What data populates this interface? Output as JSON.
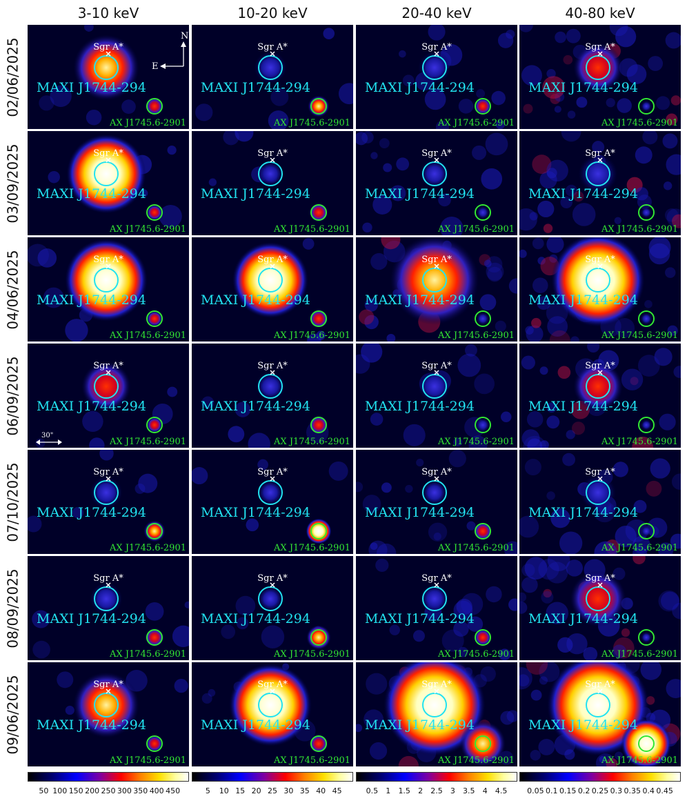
{
  "columns": [
    {
      "energy": "3-10 keV",
      "colorbar_ticks": [
        "50",
        "100",
        "150",
        "200",
        "250",
        "300",
        "350",
        "400",
        "450"
      ],
      "colorbar_range": [
        0,
        500
      ]
    },
    {
      "energy": "10-20 keV",
      "colorbar_ticks": [
        "5",
        "10",
        "15",
        "20",
        "25",
        "30",
        "35",
        "40",
        "45"
      ],
      "colorbar_range": [
        0,
        50
      ]
    },
    {
      "energy": "20-40 keV",
      "colorbar_ticks": [
        "0.5",
        "1",
        "1.5",
        "2",
        "2.5",
        "3",
        "3.5",
        "4",
        "4.5"
      ],
      "colorbar_range": [
        0,
        5
      ]
    },
    {
      "energy": "40-80 keV",
      "colorbar_ticks": [
        "0.05",
        "0.1",
        "0.15",
        "0.2",
        "0.25",
        "0.3",
        "0.35",
        "0.4",
        "0.45"
      ],
      "colorbar_range": [
        0,
        0.5
      ]
    }
  ],
  "rows": [
    {
      "date": "02/06/2025",
      "maxi_brightness": [
        0.75,
        0.25,
        0.25,
        0.5
      ],
      "ax_brightness": [
        0.5,
        0.7,
        0.45,
        0.15
      ],
      "bg_noise": [
        0.05,
        0.05,
        0.15,
        0.3
      ]
    },
    {
      "date": "03/09/2025",
      "maxi_brightness": [
        0.95,
        0.15,
        0.2,
        0.35
      ],
      "ax_brightness": [
        0.4,
        0.55,
        0.25,
        0.15
      ],
      "bg_noise": [
        0.05,
        0.05,
        0.15,
        0.3
      ]
    },
    {
      "date": "04/06/2025",
      "maxi_brightness": [
        1.0,
        0.9,
        0.85,
        0.9
      ],
      "ax_brightness": [
        0.4,
        0.55,
        0.25,
        0.2
      ],
      "bg_noise": [
        0.05,
        0.05,
        0.25,
        0.35
      ]
    },
    {
      "date": "06/09/2025",
      "maxi_brightness": [
        0.5,
        0.2,
        0.25,
        0.5
      ],
      "ax_brightness": [
        0.4,
        0.55,
        0.3,
        0.15
      ],
      "bg_noise": [
        0.05,
        0.05,
        0.15,
        0.3
      ]
    },
    {
      "date": "07/10/2025",
      "maxi_brightness": [
        0.25,
        0.15,
        0.15,
        0.3
      ],
      "ax_brightness": [
        0.7,
        0.9,
        0.5,
        0.15
      ],
      "bg_noise": [
        0.05,
        0.05,
        0.15,
        0.3
      ]
    },
    {
      "date": "08/09/2025",
      "maxi_brightness": [
        0.25,
        0.15,
        0.2,
        0.6
      ],
      "ax_brightness": [
        0.55,
        0.85,
        0.45,
        0.15
      ],
      "bg_noise": [
        0.05,
        0.05,
        0.15,
        0.3
      ]
    },
    {
      "date": "09/06/2025",
      "maxi_brightness": [
        0.75,
        1.0,
        1.0,
        1.0
      ],
      "ax_brightness": [
        0.45,
        0.55,
        0.8,
        0.9
      ],
      "bg_noise": [
        0.05,
        0.05,
        0.3,
        0.4
      ]
    }
  ],
  "labels": {
    "sgr": "Sgr A*",
    "maxi": "MAXI J1744-294",
    "ax": "AX J1745.6-2901"
  },
  "compass": {
    "north": "N",
    "east": "E"
  },
  "scale_bar": "30\"",
  "colors": {
    "maxi_circle": "#22e3f0",
    "ax_circle": "#33e833",
    "sgr_marker": "#ffffff",
    "background": "#000028"
  }
}
